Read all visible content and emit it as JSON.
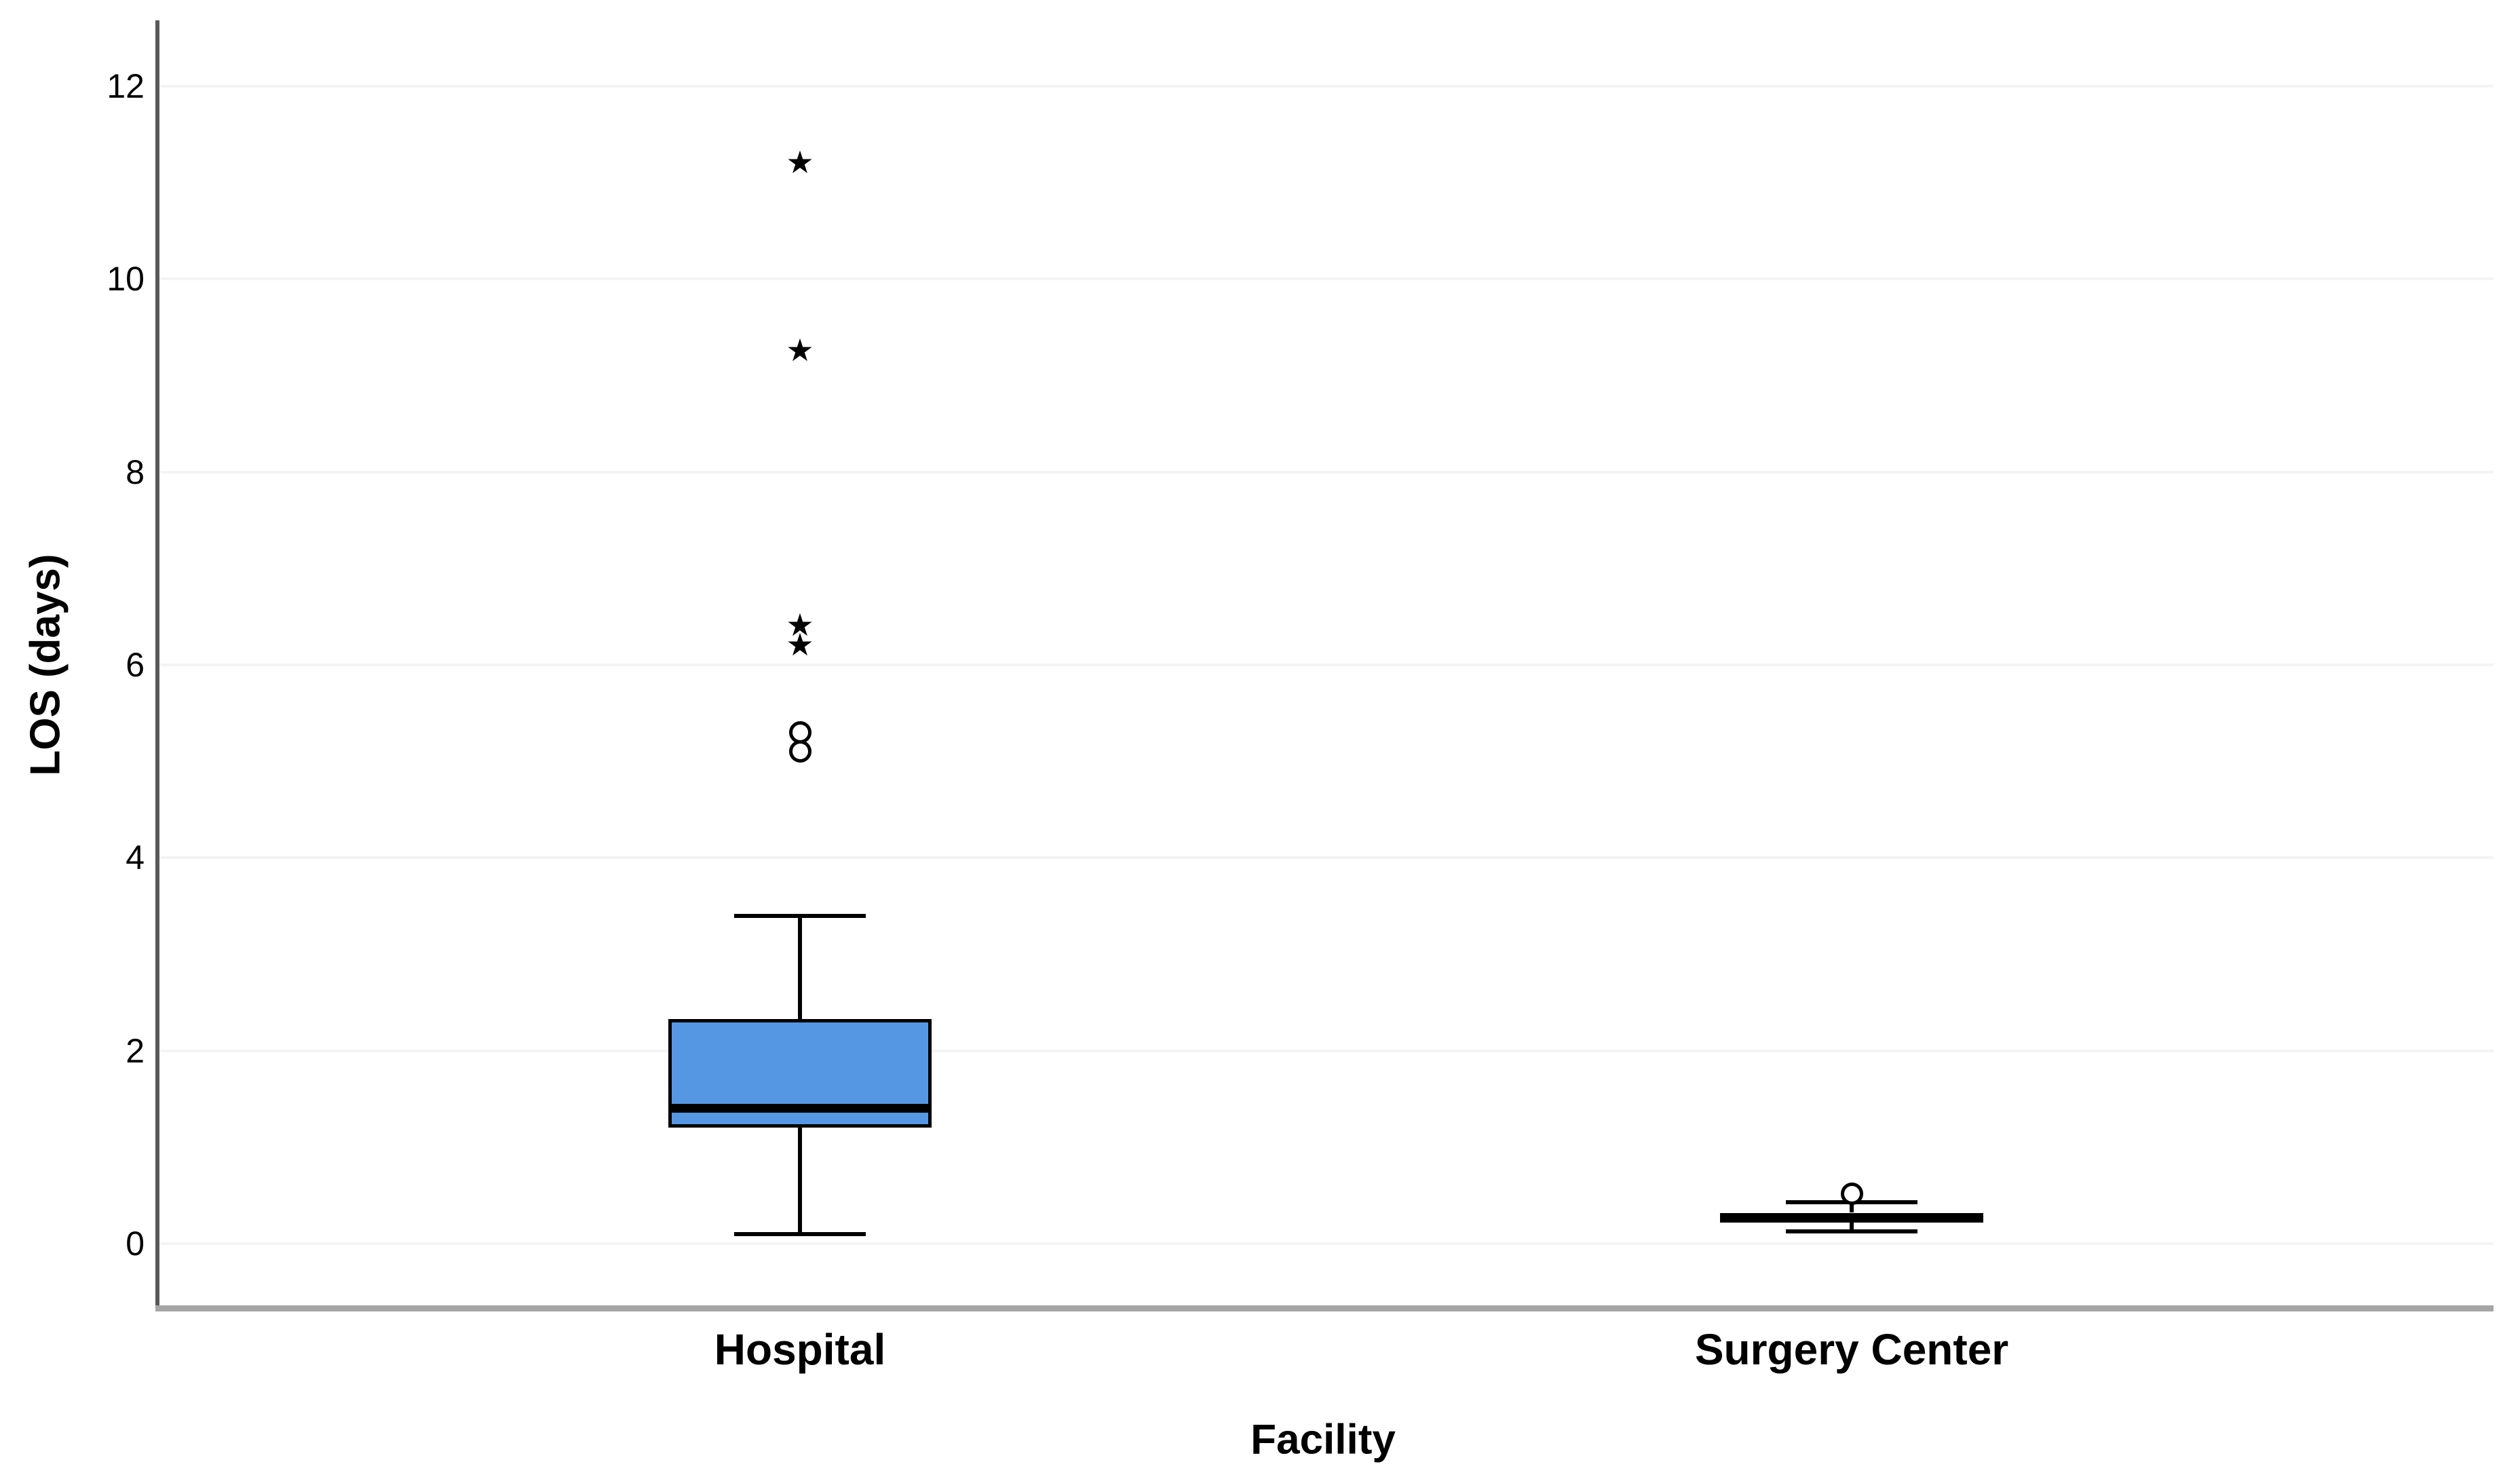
{
  "chart_data": {
    "type": "boxplot",
    "title": "",
    "xlabel": "Facility",
    "ylabel": "LOS (days)",
    "categories": [
      "Hospital",
      "Surgery Center"
    ],
    "y_ticks": [
      0,
      2,
      4,
      6,
      8,
      10,
      12
    ],
    "ylim": [
      -0.7,
      12.7
    ],
    "grid": "horizontal-light",
    "legend": "none",
    "series": [
      {
        "name": "Hospital",
        "whisker_low": 0.1,
        "q1": 1.2,
        "median": 1.4,
        "q3": 2.33,
        "whisker_high": 3.4,
        "outliers_circle": [
          5.1,
          5.3
        ],
        "outliers_star": [
          6.2,
          6.4,
          9.25,
          11.2
        ]
      },
      {
        "name": "Surgery Center",
        "whisker_low": 0.13,
        "q1": 0.22,
        "median": 0.27,
        "q3": 0.32,
        "whisker_high": 0.43,
        "outliers_circle": [
          0.52
        ],
        "outliers_star": []
      }
    ]
  },
  "style": {
    "box_fill": "#5697E4",
    "box_border": "#000000",
    "median_color": "#000000",
    "whisker_color": "#000000",
    "gridline_color": "#F4F4F4",
    "baseline_color": "#A6A6A6",
    "y_axis_color": "#595959",
    "text_color": "#000000",
    "background": "#FFFFFF",
    "star_glyph": "★"
  }
}
